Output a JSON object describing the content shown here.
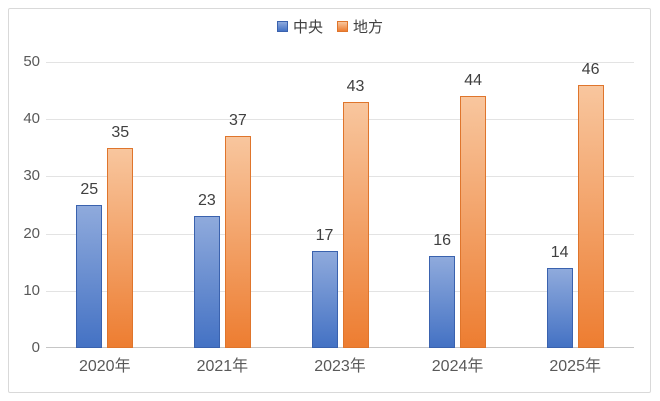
{
  "chart_data": {
    "type": "bar",
    "title": "",
    "categories": [
      "2020年",
      "2021年",
      "2023年",
      "2024年",
      "2025年"
    ],
    "series": [
      {
        "name": "中央",
        "values": [
          25,
          23,
          17,
          16,
          14
        ],
        "color": "#4472C4",
        "color_light": "#8FAADC",
        "border_color": "#3A62AE"
      },
      {
        "name": "地方",
        "values": [
          35,
          37,
          43,
          44,
          46
        ],
        "color": "#ED7D31",
        "color_light": "#F8C69E",
        "border_color": "#DF752C"
      }
    ],
    "ylim": [
      0,
      50
    ],
    "yticks": [
      0,
      10,
      20,
      30,
      40,
      50
    ],
    "grid": true,
    "legend_position": "top-center",
    "data_labels": true,
    "data_label_color": "#404040",
    "axis_label_color": "#595959",
    "gridline_color": "#E3E3E3",
    "axis_line_color": "#C6C6C6",
    "frame_border_color": "#D9D9D9",
    "background_color": "#FFFFFF"
  }
}
